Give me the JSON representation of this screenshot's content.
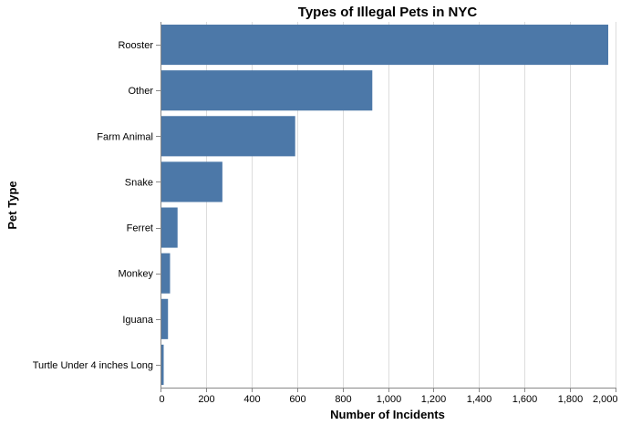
{
  "chart_data": {
    "type": "bar",
    "orientation": "horizontal",
    "title": "Types of Illegal Pets in NYC",
    "xlabel": "Number of Incidents",
    "ylabel": "Pet Type",
    "categories": [
      "Rooster",
      "Other",
      "Farm Animal",
      "Snake",
      "Ferret",
      "Monkey",
      "Iguana",
      "Turtle Under 4 inches Long"
    ],
    "values": [
      1968,
      931,
      592,
      272,
      75,
      42,
      33,
      14
    ],
    "xlim": [
      0,
      2000
    ],
    "xticks": [
      0,
      200,
      400,
      600,
      800,
      1000,
      1200,
      1400,
      1600,
      1800,
      2000
    ],
    "xtick_labels": [
      "0",
      "200",
      "400",
      "600",
      "800",
      "1,000",
      "1,200",
      "1,400",
      "1,600",
      "1,800",
      "2,000"
    ],
    "grid": true,
    "bar_color": "#4c78a8"
  }
}
